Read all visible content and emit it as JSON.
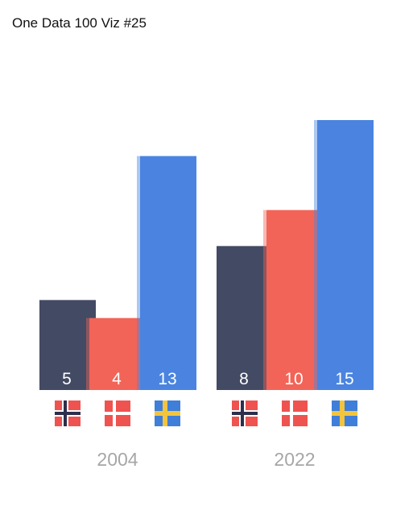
{
  "title": "One Data 100 Viz #25",
  "chart_data": {
    "type": "bar",
    "title": "One Data 100 Viz #25",
    "categories": [
      "2004",
      "2022"
    ],
    "series": [
      {
        "flag": "norway-flag-icon",
        "color": "#434a63",
        "values": [
          5,
          8
        ]
      },
      {
        "flag": "denmark-flag-icon",
        "color": "#f26457",
        "values": [
          4,
          10
        ]
      },
      {
        "flag": "sweden-flag-icon",
        "color": "#4a84e0",
        "values": [
          13,
          15
        ]
      }
    ],
    "ylim": [
      0,
      15
    ],
    "grid": false,
    "legend": "flags below bars",
    "colors": {
      "norway_red": "#ef5350",
      "norway_cross": "#2d2f4c",
      "denmark_red": "#ef5350",
      "sweden_blue": "#3f7fd9",
      "sweden_yellow": "#f2c53d",
      "category_label": "#a6a6a6",
      "value_label": "#ffffff"
    }
  }
}
